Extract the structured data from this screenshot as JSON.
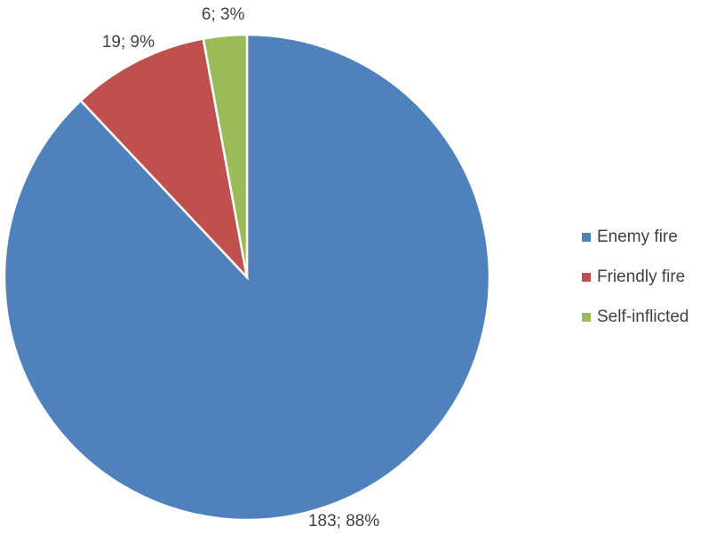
{
  "chart_data": {
    "type": "pie",
    "categories": [
      "Enemy fire",
      "Friendly fire",
      "Self-inflicted"
    ],
    "values": [
      183,
      19,
      6
    ],
    "value_labels": [
      "183; 88%",
      "19; 9%",
      "6; 3%"
    ],
    "colors": [
      "#4f81bd",
      "#c0504d",
      "#9bbb59"
    ],
    "legend": "right"
  }
}
